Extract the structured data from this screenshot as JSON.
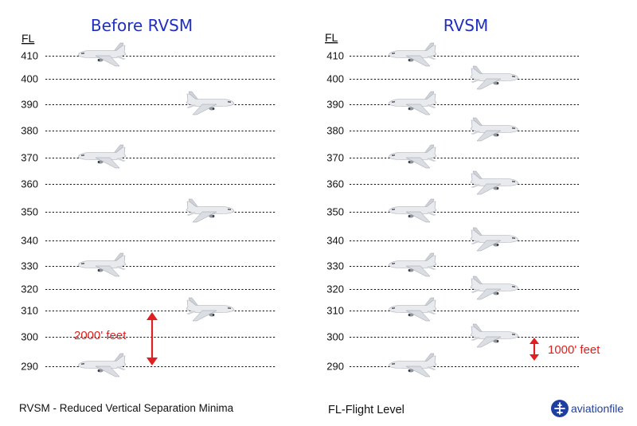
{
  "panels": [
    {
      "id": "before",
      "title": "Before RVSM",
      "fl_header": "FL",
      "levels": [
        {
          "label": "410",
          "aircraft": "left-westbound"
        },
        {
          "label": "400",
          "aircraft": ""
        },
        {
          "label": "390",
          "aircraft": "right-eastbound"
        },
        {
          "label": "380",
          "aircraft": ""
        },
        {
          "label": "370",
          "aircraft": "left-westbound"
        },
        {
          "label": "360",
          "aircraft": ""
        },
        {
          "label": "350",
          "aircraft": "right-eastbound"
        },
        {
          "label": "340",
          "aircraft": ""
        },
        {
          "label": "330",
          "aircraft": "left-westbound"
        },
        {
          "label": "320",
          "aircraft": ""
        },
        {
          "label": "310",
          "aircraft": "right-eastbound"
        },
        {
          "label": "300",
          "aircraft": ""
        },
        {
          "label": "290",
          "aircraft": "left-westbound"
        }
      ],
      "separation_label": "2000' feet",
      "separation_value_ft": 2000
    },
    {
      "id": "rvsm",
      "title": "RVSM",
      "fl_header": "FL",
      "levels": [
        {
          "label": "410",
          "aircraft": "left-westbound"
        },
        {
          "label": "400",
          "aircraft": "right-eastbound"
        },
        {
          "label": "390",
          "aircraft": "left-westbound"
        },
        {
          "label": "380",
          "aircraft": "right-eastbound"
        },
        {
          "label": "370",
          "aircraft": "left-westbound"
        },
        {
          "label": "360",
          "aircraft": "right-eastbound"
        },
        {
          "label": "350",
          "aircraft": "left-westbound"
        },
        {
          "label": "340",
          "aircraft": "right-eastbound"
        },
        {
          "label": "330",
          "aircraft": "left-westbound"
        },
        {
          "label": "320",
          "aircraft": "right-eastbound"
        },
        {
          "label": "310",
          "aircraft": "left-westbound"
        },
        {
          "label": "300",
          "aircraft": "right-eastbound"
        },
        {
          "label": "290",
          "aircraft": "left-westbound"
        }
      ],
      "separation_label": "1000' feet",
      "separation_value_ft": 1000
    }
  ],
  "footer": {
    "definition": "RVSM - Reduced Vertical Separation Minima",
    "fl_definition": "FL-Flight Level"
  },
  "brand": {
    "name": "aviationfile",
    "icon": "airplane-circle-icon",
    "color": "#1f3fa0"
  },
  "colors": {
    "title": "#1f2fbf",
    "separation": "#e02020",
    "aircraft_body": "#e6e8ec",
    "aircraft_shade": "#b9bec6"
  }
}
